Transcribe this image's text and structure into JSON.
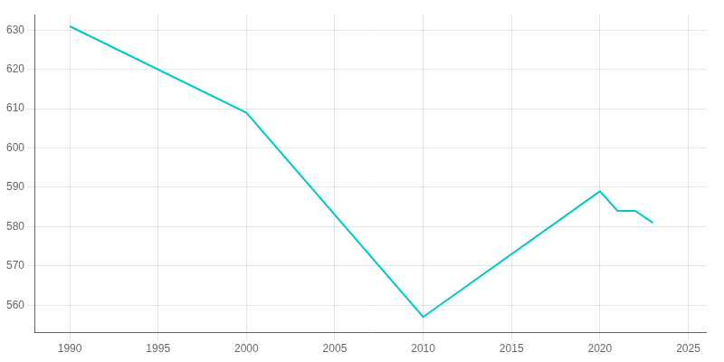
{
  "chart_data": {
    "type": "line",
    "x": [
      1990,
      2000,
      2010,
      2020,
      2021,
      2022,
      2023
    ],
    "values": [
      631,
      609,
      557,
      589,
      584,
      584,
      581
    ],
    "color": "#00C8C8",
    "xlim": [
      1988,
      2026
    ],
    "ylim": [
      553,
      634
    ],
    "xticks": [
      1990,
      1995,
      2000,
      2005,
      2010,
      2015,
      2020,
      2025
    ],
    "yticks": [
      560,
      570,
      580,
      590,
      600,
      610,
      620,
      630
    ],
    "grid": true
  }
}
